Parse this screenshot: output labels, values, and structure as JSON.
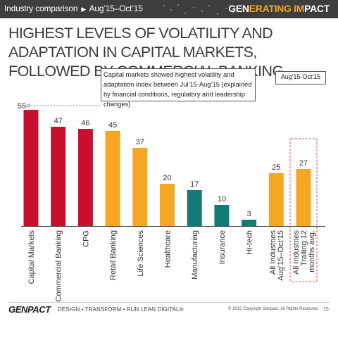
{
  "header": {
    "breadcrumb": "Industry comparison",
    "breadcrumb_range": "Aug’15–Oct’15",
    "arrow_icon": "right-triangle",
    "brand_part1": "GEN",
    "brand_part2": "ERATING IM",
    "brand_part3": "PACT"
  },
  "headline": "HIGHEST LEVELS OF VOLATILITY AND ADAPTATION IN CAPITAL MARKETS, FOLLOWED BY COMMERCIAL BANKING",
  "callout": "Capital markets showed highest volatility and adaptation index between Jul’15-Aug’15 (explained by financial conditions, regulatory and leadership changes)",
  "date_flag": "Aug'15-Oct'15",
  "chart_data": {
    "type": "bar",
    "categories": [
      "Capital Markets",
      "Commercial Banking",
      "CPG",
      "Retail Banking",
      "Life Sciences",
      "Healthcare",
      "Manufacturing",
      "Insurance",
      "Hi-tech",
      "All Industries Aug'15–Oct'15",
      "All Industries Trailing 12 months avg."
    ],
    "category_lines": [
      [
        "Capital Markets"
      ],
      [
        "Commercial Banking"
      ],
      [
        "CPG"
      ],
      [
        "Retail Banking"
      ],
      [
        "Life Sciences"
      ],
      [
        "Healthcare"
      ],
      [
        "Manufacturing"
      ],
      [
        "Insurance"
      ],
      [
        "Hi-tech"
      ],
      [
        "All Industries",
        "Aug'15–Oct'15"
      ],
      [
        "All Industries",
        "Trailing 12",
        "months avg."
      ]
    ],
    "values": [
      55,
      47,
      46,
      45,
      37,
      20,
      17,
      10,
      3,
      25,
      27
    ],
    "colors": [
      "#c8102e",
      "#c8102e",
      "#c8102e",
      "#f5a623",
      "#f5a623",
      "#f5a623",
      "#137a74",
      "#137a74",
      "#137a74",
      "#f5a623",
      "#f5a623"
    ],
    "highlight_index": 10,
    "ylim": [
      0,
      60
    ],
    "grid": false,
    "title": "",
    "xlabel": "",
    "ylabel": ""
  },
  "footer": {
    "logo": "GENPACT",
    "tagline": "DESIGN • TRANSFORM • RUN LEAN DIGITAL®",
    "copyright": "© 2015 Copyright Genpact. All Rights Reserved.",
    "page_number": "15"
  },
  "colors": {
    "accent_red": "#c8102e",
    "accent_orange": "#f5a623",
    "accent_teal": "#137a74",
    "topbar": "#3e3e3e",
    "brand_orange": "#f4a11e"
  }
}
